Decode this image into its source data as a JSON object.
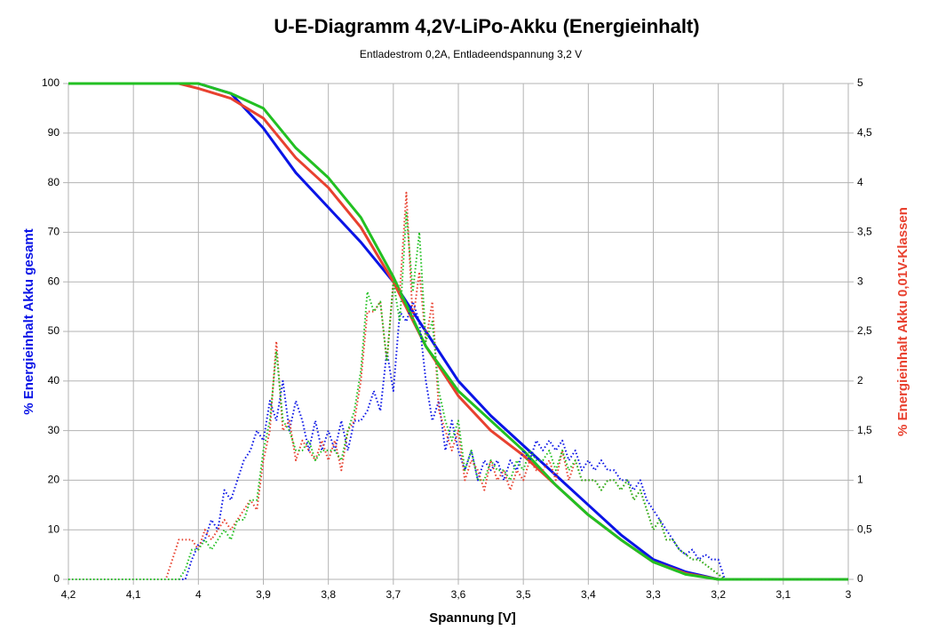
{
  "chart_data": {
    "type": "line",
    "title": "U-E-Diagramm 4,2V-LiPo-Akku (Energieinhalt)",
    "subtitle": "Entladestrom 0,2A, Entladeendspannung 3,2 V",
    "xlabel": "Spannung [V]",
    "ylabel": "% Energieinhalt Akku gesamt",
    "y2label": "% Energieinhalt Akku 0,01V-Klassen",
    "xlim": [
      4.2,
      3
    ],
    "xticks": [
      {
        "value": 4.2,
        "label": "4,2"
      },
      {
        "value": 4.1,
        "label": "4,1"
      },
      4,
      {
        "value": 3.9,
        "label": "3,9"
      },
      {
        "value": 3.8,
        "label": "3,8"
      },
      {
        "value": 3.7,
        "label": "3,7"
      },
      {
        "value": 3.6,
        "label": "3,6"
      },
      {
        "value": 3.5,
        "label": "3,5"
      },
      {
        "value": 3.4,
        "label": "3,4"
      },
      {
        "value": 3.3,
        "label": "3,3"
      },
      {
        "value": 3.2,
        "label": "3,2"
      },
      {
        "value": 3.1,
        "label": "3,1"
      },
      3
    ],
    "ylim": [
      0,
      100
    ],
    "yticks": [
      0,
      10,
      20,
      30,
      40,
      50,
      60,
      70,
      80,
      90,
      100
    ],
    "y2lim": [
      0,
      5
    ],
    "y2ticks": [
      0,
      {
        "value": 0.5,
        "label": "0,5"
      },
      1,
      {
        "value": 1.5,
        "label": "1,5"
      },
      2,
      {
        "value": 2.5,
        "label": "2,5"
      },
      3,
      {
        "value": 3.5,
        "label": "3,5"
      },
      4,
      {
        "value": 4.5,
        "label": "4,5"
      },
      5
    ],
    "grid": true,
    "series": [
      {
        "color": "#0a14e6",
        "style": "solid",
        "x": [
          4.2,
          4.03,
          4.0,
          3.95,
          3.9,
          3.85,
          3.8,
          3.75,
          3.7,
          3.65,
          3.6,
          3.55,
          3.5,
          3.45,
          3.4,
          3.35,
          3.3,
          3.25,
          3.2,
          3.0
        ],
        "values": [
          100,
          100,
          100,
          98,
          91,
          82,
          75,
          68,
          60,
          50,
          40,
          33,
          27,
          21,
          15,
          9,
          4,
          1.5,
          0,
          0
        ]
      },
      {
        "color": "#e8412f",
        "style": "solid",
        "x": [
          4.2,
          4.03,
          4.0,
          3.95,
          3.9,
          3.85,
          3.8,
          3.75,
          3.7,
          3.65,
          3.6,
          3.55,
          3.5,
          3.45,
          3.4,
          3.35,
          3.3,
          3.25,
          3.2,
          3.0
        ],
        "values": [
          100,
          100,
          99,
          97,
          93,
          85,
          79,
          71,
          60,
          47,
          37,
          30,
          25,
          19,
          13,
          8,
          3.5,
          1.2,
          0,
          0
        ]
      },
      {
        "color": "#22c022",
        "style": "solid",
        "x": [
          4.2,
          4.03,
          4.0,
          3.95,
          3.9,
          3.85,
          3.8,
          3.75,
          3.7,
          3.65,
          3.6,
          3.55,
          3.5,
          3.45,
          3.4,
          3.35,
          3.3,
          3.25,
          3.2,
          3.0
        ],
        "values": [
          100,
          100,
          100,
          98,
          95,
          87,
          81,
          73,
          61,
          47,
          38,
          32,
          26,
          19,
          13,
          8,
          3.5,
          1,
          0,
          0
        ]
      },
      {
        "color": "#0a14e6",
        "style": "dotted",
        "axis": "y2",
        "x": [
          4.2,
          4.05,
          4.04,
          4.03,
          4.02,
          4.01,
          4.0,
          3.99,
          3.98,
          3.97,
          3.96,
          3.95,
          3.94,
          3.93,
          3.92,
          3.91,
          3.9,
          3.89,
          3.88,
          3.87,
          3.86,
          3.85,
          3.84,
          3.83,
          3.82,
          3.81,
          3.8,
          3.79,
          3.78,
          3.77,
          3.76,
          3.75,
          3.74,
          3.73,
          3.72,
          3.71,
          3.7,
          3.69,
          3.68,
          3.67,
          3.66,
          3.65,
          3.64,
          3.63,
          3.62,
          3.61,
          3.6,
          3.59,
          3.58,
          3.57,
          3.56,
          3.55,
          3.54,
          3.53,
          3.52,
          3.51,
          3.5,
          3.49,
          3.48,
          3.47,
          3.46,
          3.45,
          3.44,
          3.43,
          3.42,
          3.41,
          3.4,
          3.39,
          3.38,
          3.37,
          3.36,
          3.35,
          3.34,
          3.33,
          3.32,
          3.31,
          3.3,
          3.29,
          3.28,
          3.27,
          3.26,
          3.25,
          3.24,
          3.23,
          3.22,
          3.21,
          3.2,
          3.19,
          3.0
        ],
        "values": [
          0,
          0,
          0,
          0,
          0,
          0.2,
          0.35,
          0.4,
          0.6,
          0.5,
          0.9,
          0.8,
          1.0,
          1.2,
          1.3,
          1.5,
          1.4,
          1.8,
          1.6,
          2.0,
          1.5,
          1.8,
          1.6,
          1.3,
          1.6,
          1.3,
          1.5,
          1.3,
          1.6,
          1.3,
          1.6,
          1.6,
          1.7,
          1.9,
          1.7,
          2.3,
          1.9,
          2.7,
          2.6,
          2.8,
          2.6,
          2.0,
          1.6,
          1.8,
          1.3,
          1.6,
          1.3,
          1.1,
          1.3,
          1.0,
          1.2,
          1.1,
          1.2,
          1.0,
          1.2,
          1.1,
          1.3,
          1.2,
          1.4,
          1.3,
          1.4,
          1.3,
          1.4,
          1.2,
          1.3,
          1.1,
          1.2,
          1.1,
          1.2,
          1.1,
          1.1,
          1.0,
          1.0,
          0.9,
          1.0,
          0.8,
          0.7,
          0.6,
          0.5,
          0.4,
          0.3,
          0.25,
          0.3,
          0.2,
          0.25,
          0.2,
          0.2,
          0,
          0
        ]
      },
      {
        "color": "#e8412f",
        "style": "dotted",
        "axis": "y2",
        "x": [
          4.2,
          4.05,
          4.04,
          4.03,
          4.02,
          4.01,
          4.0,
          3.99,
          3.98,
          3.97,
          3.96,
          3.95,
          3.94,
          3.93,
          3.92,
          3.91,
          3.9,
          3.89,
          3.88,
          3.87,
          3.86,
          3.85,
          3.84,
          3.83,
          3.82,
          3.81,
          3.8,
          3.79,
          3.78,
          3.77,
          3.76,
          3.75,
          3.74,
          3.73,
          3.72,
          3.71,
          3.7,
          3.69,
          3.68,
          3.67,
          3.66,
          3.65,
          3.64,
          3.63,
          3.62,
          3.61,
          3.6,
          3.59,
          3.58,
          3.57,
          3.56,
          3.55,
          3.54,
          3.53,
          3.52,
          3.51,
          3.5,
          3.49,
          3.48,
          3.47,
          3.46,
          3.45,
          3.44,
          3.43,
          3.42,
          3.41,
          3.4,
          3.39,
          3.38,
          3.37,
          3.36,
          3.35,
          3.34,
          3.33,
          3.32,
          3.31,
          3.3,
          3.29,
          3.28,
          3.27,
          3.26,
          3.25,
          3.24,
          3.23,
          3.22,
          3.21,
          3.2,
          3.19,
          3.0
        ],
        "values": [
          0,
          0,
          0.2,
          0.4,
          0.4,
          0.4,
          0.3,
          0.5,
          0.4,
          0.5,
          0.6,
          0.5,
          0.6,
          0.7,
          0.8,
          0.7,
          1.2,
          1.5,
          2.4,
          1.5,
          1.6,
          1.2,
          1.4,
          1.3,
          1.2,
          1.4,
          1.2,
          1.4,
          1.1,
          1.5,
          1.6,
          2.0,
          2.7,
          2.7,
          2.8,
          2.2,
          3.0,
          2.9,
          3.9,
          2.6,
          3.1,
          2.4,
          2.8,
          1.7,
          1.5,
          1.3,
          1.5,
          1.0,
          1.2,
          1.1,
          0.9,
          1.2,
          1.0,
          1.1,
          0.9,
          1.1,
          1.0,
          1.2,
          1.1,
          1.1,
          1.2,
          1.0,
          1.3,
          1.0,
          1.2,
          1.0,
          1.0,
          1.0,
          0.9,
          1.0,
          1.0,
          0.9,
          1.0,
          0.8,
          0.9,
          0.7,
          0.5,
          0.6,
          0.4,
          0.4,
          0.3,
          0.25,
          0.2,
          0.2,
          0.15,
          0.1,
          0.05,
          0,
          0
        ]
      },
      {
        "color": "#22c022",
        "style": "dotted",
        "axis": "y2",
        "x": [
          4.2,
          4.05,
          4.04,
          4.03,
          4.02,
          4.01,
          4.0,
          3.99,
          3.98,
          3.97,
          3.96,
          3.95,
          3.94,
          3.93,
          3.92,
          3.91,
          3.9,
          3.89,
          3.88,
          3.87,
          3.86,
          3.85,
          3.84,
          3.83,
          3.82,
          3.81,
          3.8,
          3.79,
          3.78,
          3.77,
          3.76,
          3.75,
          3.74,
          3.73,
          3.72,
          3.71,
          3.7,
          3.69,
          3.68,
          3.67,
          3.66,
          3.65,
          3.64,
          3.63,
          3.62,
          3.61,
          3.6,
          3.59,
          3.58,
          3.57,
          3.56,
          3.55,
          3.54,
          3.53,
          3.52,
          3.51,
          3.5,
          3.49,
          3.48,
          3.47,
          3.46,
          3.45,
          3.44,
          3.43,
          3.42,
          3.41,
          3.4,
          3.39,
          3.38,
          3.37,
          3.36,
          3.35,
          3.34,
          3.33,
          3.32,
          3.31,
          3.3,
          3.29,
          3.28,
          3.27,
          3.26,
          3.25,
          3.24,
          3.23,
          3.22,
          3.21,
          3.2,
          3.19,
          3.0
        ],
        "values": [
          0,
          0,
          0,
          0,
          0.1,
          0.3,
          0.3,
          0.4,
          0.3,
          0.4,
          0.5,
          0.4,
          0.6,
          0.6,
          0.8,
          0.8,
          1.3,
          1.6,
          2.3,
          1.6,
          1.5,
          1.3,
          1.3,
          1.4,
          1.2,
          1.3,
          1.3,
          1.3,
          1.2,
          1.5,
          1.7,
          2.1,
          2.9,
          2.7,
          2.8,
          2.2,
          3.0,
          2.6,
          3.7,
          2.9,
          3.5,
          2.4,
          2.6,
          1.9,
          1.6,
          1.4,
          1.6,
          1.1,
          1.3,
          1.0,
          1.0,
          1.2,
          1.1,
          1.1,
          1.0,
          1.2,
          1.1,
          1.3,
          1.2,
          1.2,
          1.3,
          1.1,
          1.3,
          1.1,
          1.2,
          1.0,
          1.0,
          1.0,
          0.9,
          1.0,
          1.0,
          0.9,
          1.0,
          0.8,
          0.9,
          0.7,
          0.5,
          0.6,
          0.4,
          0.4,
          0.3,
          0.25,
          0.2,
          0.2,
          0.15,
          0.1,
          0.05,
          0,
          0
        ]
      }
    ]
  }
}
